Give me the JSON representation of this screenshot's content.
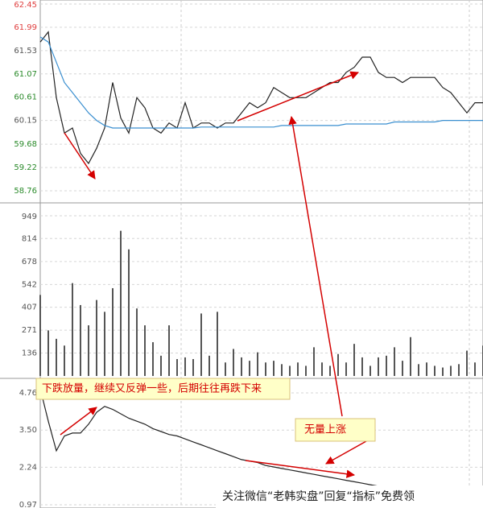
{
  "chart_data": [
    {
      "type": "line",
      "ylim": [
        58.76,
        62.45
      ],
      "yticks": [
        62.45,
        61.99,
        61.53,
        61.07,
        60.61,
        60.15,
        59.68,
        59.22,
        58.76
      ],
      "ytick_colors": [
        "#e04040",
        "#e04040",
        "#555555",
        "#2a8a2a",
        "#2a8a2a",
        "#555555",
        "#2a8a2a",
        "#2a8a2a",
        "#2a8a2a"
      ],
      "grid": true,
      "series": [
        {
          "color": "#222222",
          "values": [
            61.7,
            61.9,
            60.6,
            59.9,
            60.0,
            59.5,
            59.3,
            59.6,
            60.0,
            60.9,
            60.2,
            59.9,
            60.6,
            60.4,
            60.0,
            59.9,
            60.1,
            60.0,
            60.5,
            60.0,
            60.1,
            60.1,
            60.0,
            60.1,
            60.1,
            60.3,
            60.5,
            60.4,
            60.5,
            60.8,
            60.7,
            60.6,
            60.6,
            60.6,
            60.7,
            60.8,
            60.9,
            60.9,
            61.1,
            61.2,
            61.4,
            61.4,
            61.1,
            61.0,
            61.0,
            60.9,
            61.0,
            61.0,
            61.0,
            61.0,
            60.8,
            60.7,
            60.5,
            60.3,
            60.5,
            60.5
          ]
        },
        {
          "color": "#3a8fd0",
          "values": [
            61.8,
            61.7,
            61.3,
            60.9,
            60.7,
            60.5,
            60.3,
            60.15,
            60.05,
            60.0,
            60.0,
            60.0,
            60.0,
            60.0,
            60.0,
            60.0,
            60.0,
            60.0,
            60.0,
            60.0,
            60.02,
            60.02,
            60.02,
            60.02,
            60.02,
            60.02,
            60.02,
            60.02,
            60.02,
            60.02,
            60.05,
            60.05,
            60.05,
            60.05,
            60.05,
            60.05,
            60.05,
            60.05,
            60.08,
            60.08,
            60.08,
            60.08,
            60.08,
            60.08,
            60.12,
            60.12,
            60.12,
            60.12,
            60.12,
            60.12,
            60.15,
            60.15,
            60.15,
            60.15,
            60.15,
            60.15
          ]
        }
      ]
    },
    {
      "type": "bar",
      "ylim": [
        0,
        949
      ],
      "yticks": [
        949,
        814,
        678,
        542,
        407,
        271,
        136
      ],
      "ytick_colors": [
        "#555555"
      ],
      "grid": true,
      "color": "#555555",
      "values": [
        480,
        270,
        220,
        180,
        550,
        420,
        300,
        450,
        380,
        520,
        860,
        750,
        400,
        300,
        200,
        120,
        300,
        100,
        110,
        100,
        370,
        120,
        380,
        80,
        160,
        110,
        90,
        140,
        80,
        90,
        70,
        60,
        80,
        60,
        170,
        80,
        60,
        130,
        80,
        190,
        110,
        60,
        110,
        120,
        170,
        90,
        230,
        70,
        80,
        60,
        50,
        60,
        70,
        150,
        80,
        180
      ]
    },
    {
      "type": "line",
      "ylim": [
        0.97,
        5.25
      ],
      "yticks": [
        4.76,
        {
          "value": 3.5,
          "label": "3.50"
        },
        2.24,
        0.97
      ],
      "ytick_colors": [
        "#555555"
      ],
      "grid": true,
      "series": [
        {
          "color": "#222222",
          "values": [
            4.9,
            3.8,
            2.8,
            3.3,
            3.4,
            3.4,
            3.7,
            4.1,
            4.3,
            4.2,
            4.05,
            3.9,
            3.8,
            3.7,
            3.55,
            3.45,
            3.35,
            3.3,
            3.2,
            3.1,
            3.0,
            2.9,
            2.8,
            2.7,
            2.6,
            2.5,
            2.45,
            2.4,
            2.3,
            2.25,
            2.2,
            2.15,
            2.1,
            2.05,
            2.0,
            1.95,
            1.9,
            1.85,
            1.8,
            1.75,
            1.7,
            1.65,
            1.6,
            1.58,
            1.55,
            1.52,
            1.5,
            1.48,
            1.45,
            1.42,
            1.4,
            1.38,
            1.35,
            1.33,
            1.31,
            1.3
          ]
        }
      ]
    }
  ],
  "annotations": [
    "下跌放量，继续又反弹一些，后期往往再跌下来",
    "无量上涨"
  ],
  "watermark": "关注微信“老韩实盘”回复“指标”免费领"
}
